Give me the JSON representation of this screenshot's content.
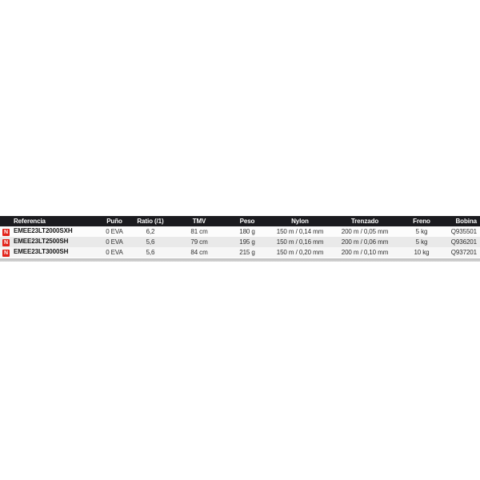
{
  "table": {
    "new_badge": "N",
    "columns": {
      "referencia": "Referencia",
      "puno": "Puño",
      "ratio": "Ratio (/1)",
      "tmv": "TMV",
      "peso": "Peso",
      "nylon": "Nylon",
      "trenzado": "Trenzado",
      "freno": "Freno",
      "bobina": "Bobina"
    },
    "rows": [
      {
        "new": "N",
        "referencia": "EMEE23LT2000SXH",
        "puno": "0 EVA",
        "ratio": "6,2",
        "tmv": "81 cm",
        "peso": "180 g",
        "nylon": "150 m / 0,14 mm",
        "trenzado": "200 m / 0,05 mm",
        "freno": "5 kg",
        "bobina": "Q935501"
      },
      {
        "new": "N",
        "referencia": "EMEE23LT2500SH",
        "puno": "0 EVA",
        "ratio": "5,6",
        "tmv": "79 cm",
        "peso": "195 g",
        "nylon": "150 m / 0,16 mm",
        "trenzado": "200 m / 0,06 mm",
        "freno": "5 kg",
        "bobina": "Q936201"
      },
      {
        "new": "N",
        "referencia": "EMEE23LT3000SH",
        "puno": "0 EVA",
        "ratio": "5,6",
        "tmv": "84 cm",
        "peso": "215 g",
        "nylon": "150 m / 0,20 mm",
        "trenzado": "200 m / 0,10 mm",
        "freno": "10 kg",
        "bobina": "Q937201"
      }
    ],
    "colors": {
      "header_bg": "#1b1b1f",
      "badge_red": "#e2231a",
      "row_alt": "#e9e9e9",
      "bottom_bar": "#c9c9c9"
    }
  }
}
